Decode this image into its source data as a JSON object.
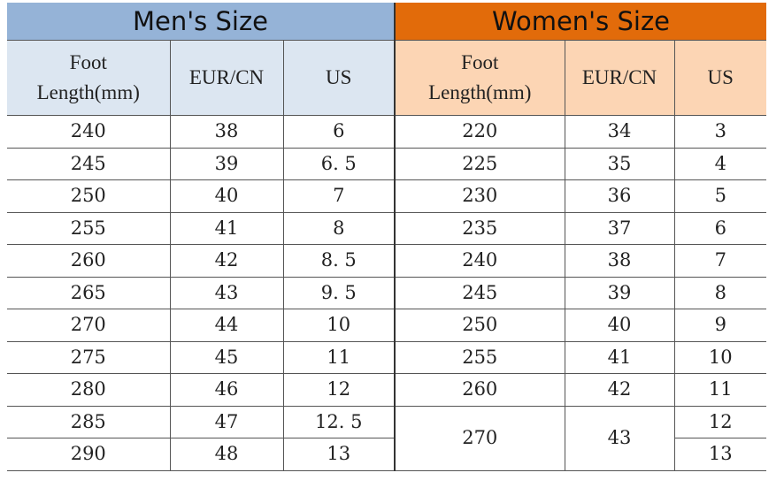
{
  "men": {
    "title": "Men's Size",
    "columns": {
      "foot_line1": "Foot",
      "foot_line2": "Length(mm)",
      "eur": "EUR/CN",
      "us": "US"
    },
    "rows": [
      [
        "240",
        "38",
        "6"
      ],
      [
        "245",
        "39",
        "6. 5"
      ],
      [
        "250",
        "40",
        "7"
      ],
      [
        "255",
        "41",
        "8"
      ],
      [
        "260",
        "42",
        "8. 5"
      ],
      [
        "265",
        "43",
        "9. 5"
      ],
      [
        "270",
        "44",
        "10"
      ],
      [
        "275",
        "45",
        "11"
      ],
      [
        "280",
        "46",
        "12"
      ],
      [
        "285",
        "47",
        "12. 5"
      ],
      [
        "290",
        "48",
        "13"
      ]
    ]
  },
  "women": {
    "title": "Women's Size",
    "columns": {
      "foot_line1": "Foot",
      "foot_line2": "Length(mm)",
      "eur": "EUR/CN",
      "us": "US"
    },
    "rows": [
      [
        "220",
        "34",
        "3"
      ],
      [
        "225",
        "35",
        "4"
      ],
      [
        "230",
        "36",
        "5"
      ],
      [
        "235",
        "37",
        "6"
      ],
      [
        "240",
        "38",
        "7"
      ],
      [
        "245",
        "39",
        "8"
      ],
      [
        "250",
        "40",
        "9"
      ],
      [
        "255",
        "41",
        "10"
      ],
      [
        "260",
        "42",
        "11"
      ],
      [
        "270",
        "43",
        "12"
      ],
      [
        "",
        "",
        "13"
      ]
    ]
  },
  "colors": {
    "men_header": "#95b3d7",
    "men_subheader": "#dce6f1",
    "women_header": "#e26b0a",
    "women_subheader": "#fcd5b4"
  }
}
